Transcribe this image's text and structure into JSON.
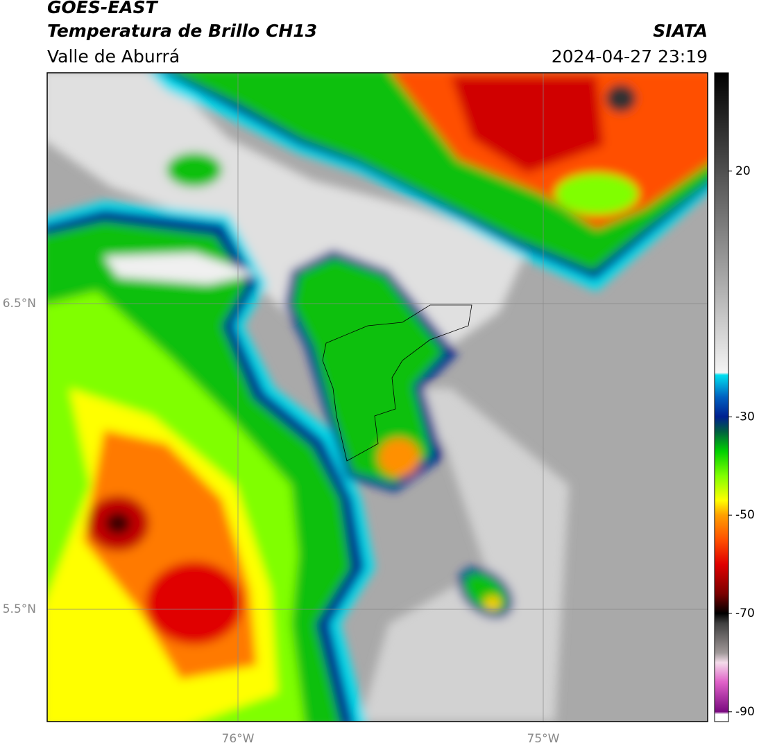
{
  "header": {
    "title": "GOES-EAST",
    "subtitle": "Temperatura de Brillo CH13",
    "region": "Valle de Aburrá",
    "source": "SIATA",
    "timestamp": "2024-04-27 23:19"
  },
  "map": {
    "lon_labels": [
      "76°W",
      "75°W"
    ],
    "lat_labels": [
      "6.5°N",
      "5.5°N"
    ]
  },
  "colorbar": {
    "range": [
      -92,
      40
    ],
    "ticks": [
      20,
      -30,
      -50,
      -70,
      -90
    ],
    "stops": [
      {
        "value": -92,
        "color": "#ffffff"
      },
      {
        "value": -90.5,
        "color": "#ffffff"
      },
      {
        "value": -90,
        "color": "#7a0a80"
      },
      {
        "value": -84,
        "color": "#e060c8"
      },
      {
        "value": -80,
        "color": "#f4dcea"
      },
      {
        "value": -78,
        "color": "#a09898"
      },
      {
        "value": -72,
        "color": "#404040"
      },
      {
        "value": -70,
        "color": "#000000"
      },
      {
        "value": -66,
        "color": "#7a0000"
      },
      {
        "value": -60,
        "color": "#e00000"
      },
      {
        "value": -55,
        "color": "#ff5000"
      },
      {
        "value": -50,
        "color": "#ffa000"
      },
      {
        "value": -47,
        "color": "#ffff00"
      },
      {
        "value": -42,
        "color": "#80ff00"
      },
      {
        "value": -37,
        "color": "#00d000"
      },
      {
        "value": -33,
        "color": "#006040"
      },
      {
        "value": -30,
        "color": "#002090"
      },
      {
        "value": -26,
        "color": "#0060c0"
      },
      {
        "value": -21.5,
        "color": "#00e0f0"
      },
      {
        "value": -21,
        "color": "#f4f4f4"
      },
      {
        "value": 40,
        "color": "#000000"
      }
    ]
  }
}
